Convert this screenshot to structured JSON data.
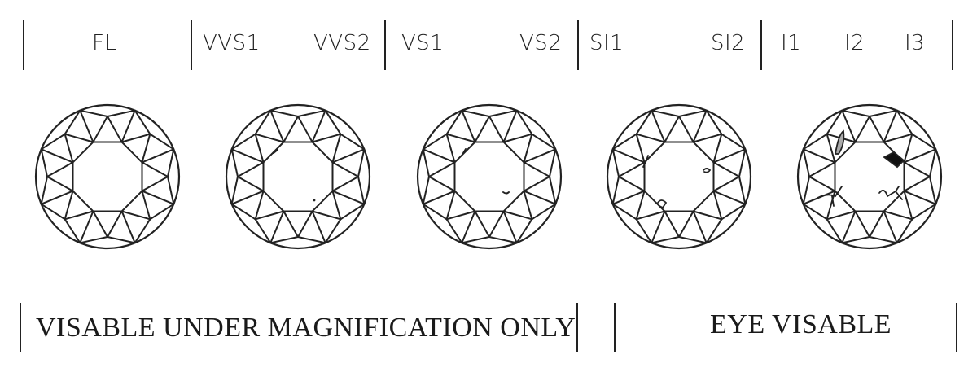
{
  "grades": {
    "fl": "FL",
    "vvs1": "VVS1",
    "vvs2": "VVS2",
    "vs1": "VS1",
    "vs2": "VS2",
    "si1": "SI1",
    "si2": "SI2",
    "i1": "I1",
    "i2": "I2",
    "i3": "I3"
  },
  "captions": {
    "magnification": "VISABLE UNDER MAGNIFICATION ONLY",
    "eye": "EYE VISABLE"
  },
  "diamonds": [
    {
      "name": "diamond-fl",
      "inclusions": "none"
    },
    {
      "name": "diamond-vvs",
      "inclusions": "tiny"
    },
    {
      "name": "diamond-vs",
      "inclusions": "very-small"
    },
    {
      "name": "diamond-si",
      "inclusions": "small"
    },
    {
      "name": "diamond-i",
      "inclusions": "visible"
    }
  ],
  "colors": {
    "line": "#222222",
    "background": "#ffffff"
  }
}
